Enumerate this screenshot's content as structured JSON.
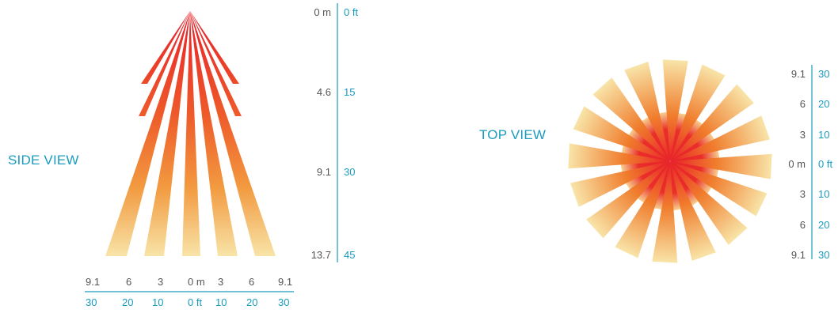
{
  "colors": {
    "accent": "#1a9bbf",
    "metric_text": "#555555",
    "beam_hot": "#e8202a",
    "beam_mid": "#f07c2c",
    "beam_cool": "#f8e4a8"
  },
  "side_view": {
    "title": "SIDE VIEW",
    "vertical_scale": {
      "meters": [
        "0 m",
        "4.6",
        "9.1",
        "13.7"
      ],
      "feet": [
        "0 ft",
        "15",
        "30",
        "45"
      ]
    },
    "horizontal_scale": {
      "meters": [
        "9.1",
        "6",
        "3",
        "0 m",
        "3",
        "6",
        "9.1"
      ],
      "feet": [
        "30",
        "20",
        "10",
        "0 ft",
        "10",
        "20",
        "30"
      ]
    }
  },
  "top_view": {
    "title": "TOP VIEW",
    "vertical_scale": {
      "meters": [
        "9.1",
        "6",
        "3",
        "0 m",
        "3",
        "6",
        "9.1"
      ],
      "feet": [
        "30",
        "20",
        "10",
        "0 ft",
        "10",
        "20",
        "30"
      ]
    }
  }
}
